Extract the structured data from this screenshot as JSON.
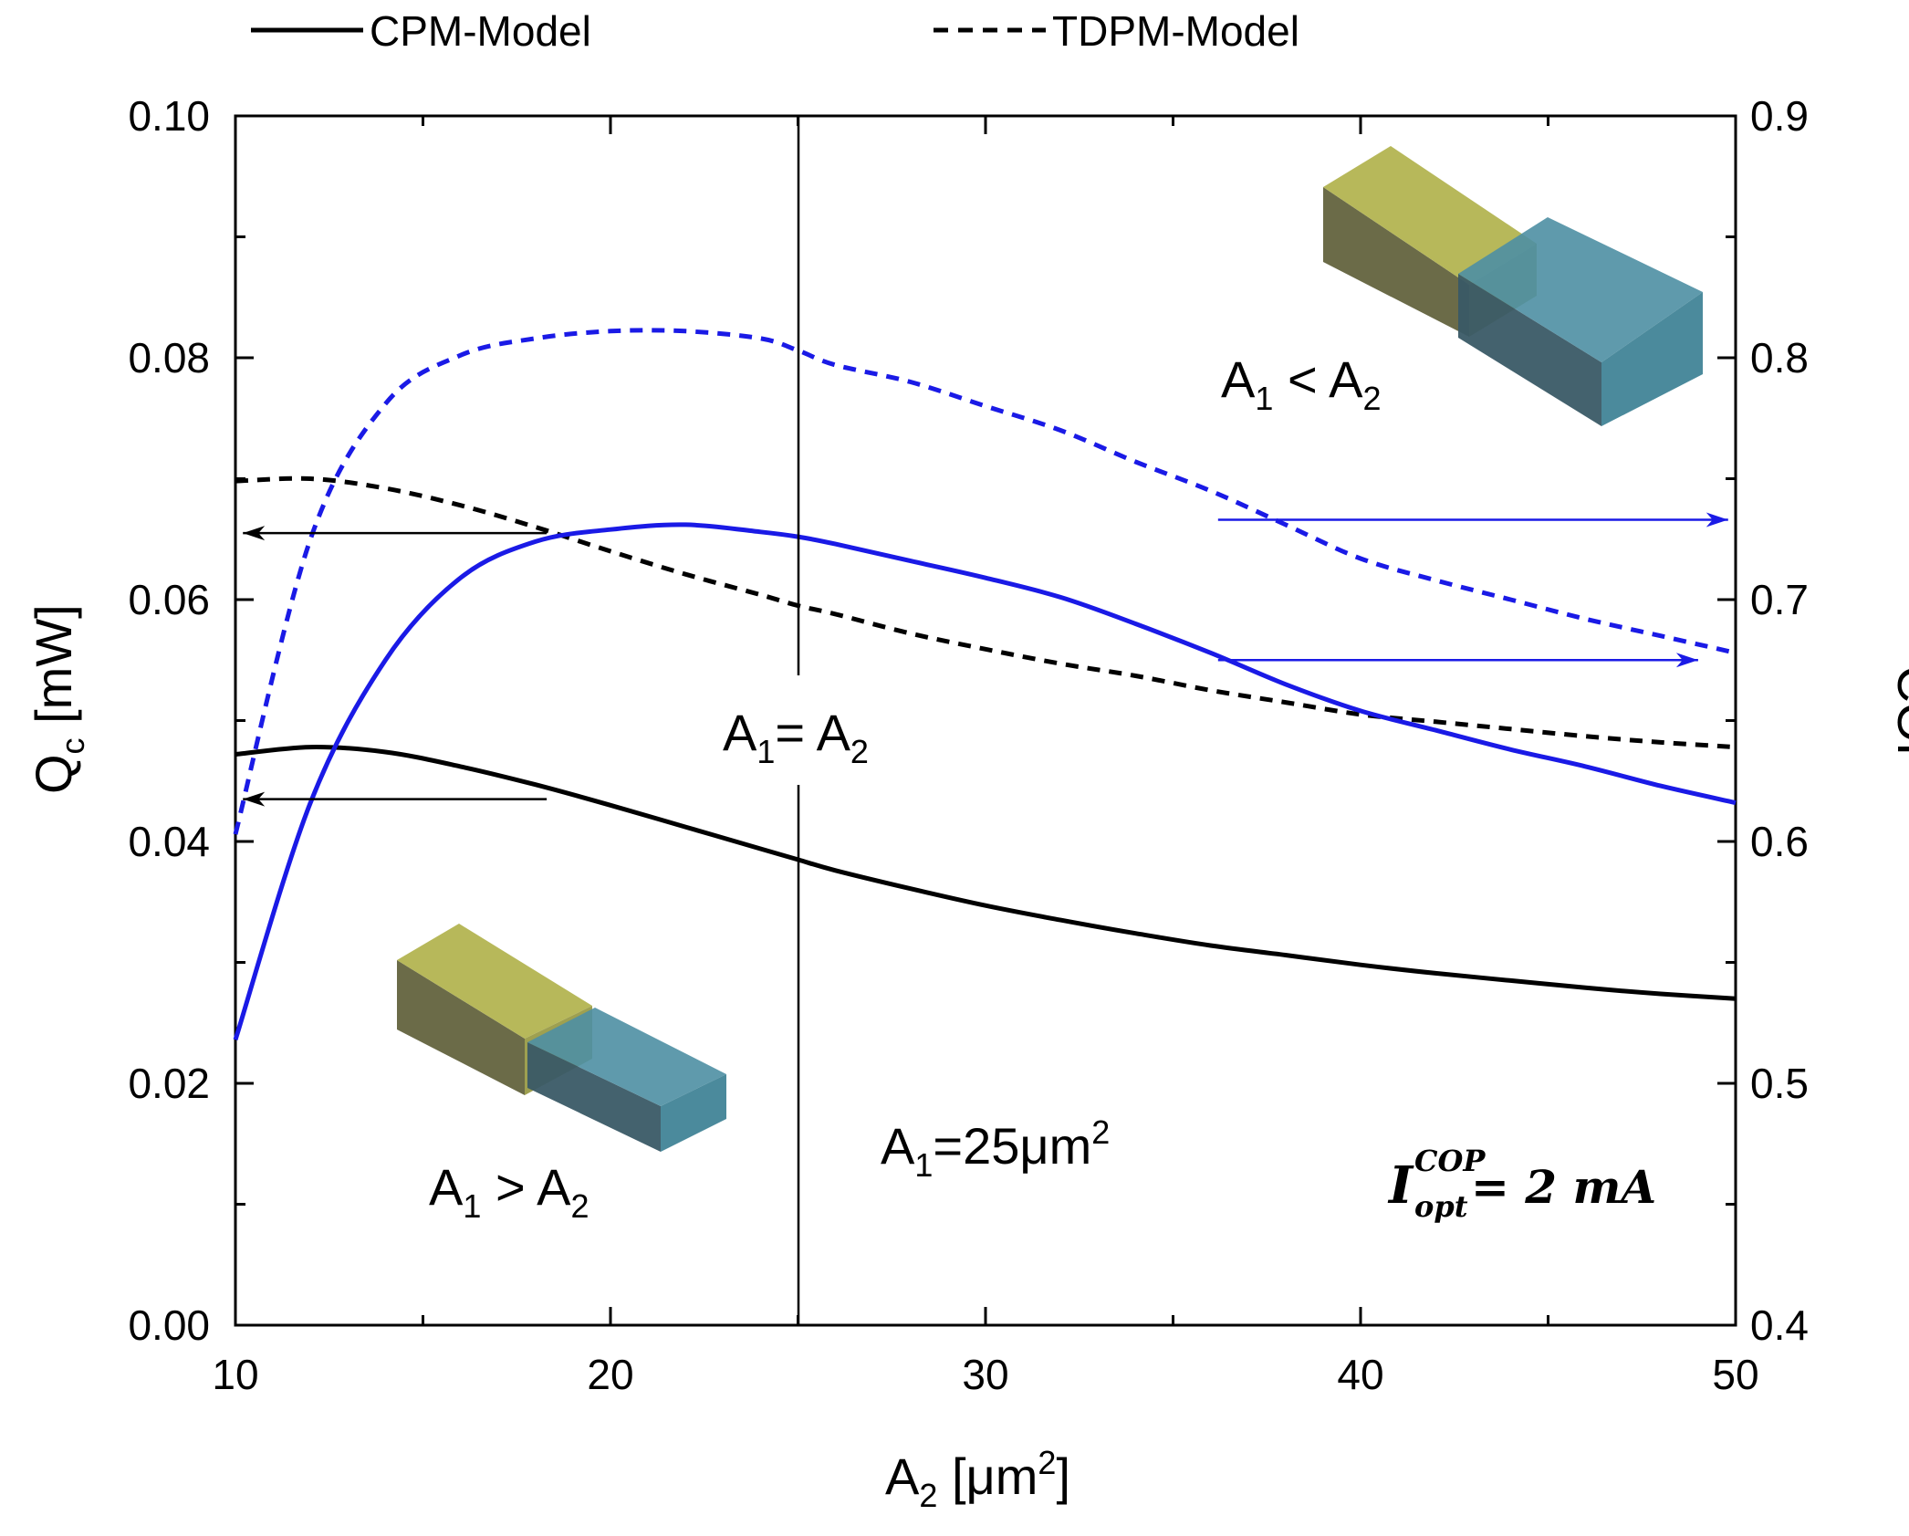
{
  "chart_data": {
    "type": "line",
    "title": "",
    "xlabel": "A₂ [μm²]",
    "ylabel_left": "Q_c [mW]",
    "ylabel_right": "COP",
    "x_ticks": [
      "10",
      "20",
      "30",
      "40",
      "50"
    ],
    "y_left_ticks": [
      "0.00",
      "0.02",
      "0.04",
      "0.06",
      "0.08",
      "0.10"
    ],
    "y_right_ticks": [
      "0.4",
      "0.5",
      "0.6",
      "0.7",
      "0.8",
      "0.9"
    ],
    "xlim": [
      10,
      50
    ],
    "ylim_left": [
      0,
      0.1
    ],
    "ylim_right": [
      0.4,
      0.9
    ],
    "legend": [
      {
        "label": "CPM-Model",
        "style": "solid"
      },
      {
        "label": "TDPM-Model",
        "style": "dashed"
      }
    ],
    "x": [
      10,
      12,
      14,
      16,
      18,
      20,
      22,
      24,
      25,
      26,
      28,
      30,
      32,
      34,
      36,
      38,
      40,
      42,
      44,
      46,
      48,
      50
    ],
    "series": [
      {
        "name": "CPM-Model Qc",
        "axis": "left",
        "style": "solid",
        "color": "#000000",
        "values": [
          0.0472,
          0.0478,
          0.0474,
          0.0462,
          0.0447,
          0.043,
          0.0412,
          0.0394,
          0.0385,
          0.0376,
          0.0361,
          0.0347,
          0.0335,
          0.0324,
          0.0314,
          0.0306,
          0.0298,
          0.0291,
          0.0285,
          0.0279,
          0.0274,
          0.027
        ]
      },
      {
        "name": "TDPM-Model Qc",
        "axis": "left",
        "style": "dashed",
        "color": "#000000",
        "values": [
          0.0698,
          0.07,
          0.0692,
          0.0678,
          0.066,
          0.064,
          0.0621,
          0.0604,
          0.0595,
          0.0588,
          0.0572,
          0.0559,
          0.0547,
          0.0537,
          0.0525,
          0.0515,
          0.0505,
          0.0499,
          0.0493,
          0.0487,
          0.0482,
          0.0478
        ]
      },
      {
        "name": "CPM-Model COP",
        "axis": "right",
        "style": "solid",
        "color": "#1a1ae6",
        "values": [
          0.518,
          0.616,
          0.675,
          0.709,
          0.724,
          0.729,
          0.731,
          0.728,
          0.726,
          0.723,
          0.716,
          0.709,
          0.701,
          0.69,
          0.678,
          0.665,
          0.654,
          0.646,
          0.638,
          0.631,
          0.623,
          0.616
        ]
      },
      {
        "name": "TDPM-Model COP",
        "axis": "right",
        "style": "dashed",
        "color": "#1a1ae6",
        "values": [
          0.603,
          0.725,
          0.781,
          0.801,
          0.808,
          0.811,
          0.811,
          0.808,
          0.803,
          0.797,
          0.79,
          0.78,
          0.77,
          0.757,
          0.745,
          0.731,
          0.717,
          0.708,
          0.7,
          0.692,
          0.685,
          0.678
        ]
      }
    ],
    "vertical_line_x": 25,
    "arrows": [
      {
        "from_x": 18.3,
        "to_x": 10.2,
        "y": 0.0655,
        "axis": "left",
        "color": "#000000"
      },
      {
        "from_x": 18.3,
        "to_x": 10.2,
        "y": 0.0435,
        "axis": "left",
        "color": "#000000"
      },
      {
        "from_x": 36.2,
        "to_x": 49.8,
        "y": 0.733,
        "axis": "right",
        "color": "#1a1ae6"
      },
      {
        "from_x": 36.2,
        "to_x": 49.0,
        "y": 0.675,
        "axis": "right",
        "color": "#1a1ae6"
      }
    ],
    "annotations": {
      "equal": {
        "a": "A",
        "s1": "1",
        "mid": "= A",
        "s2": "2"
      },
      "less": {
        "a": "A",
        "s1": "1",
        "mid": " < A",
        "s2": "2"
      },
      "greater": {
        "a": "A",
        "s1": "1",
        "mid": " > A",
        "s2": "2"
      },
      "a1value": {
        "a": "A",
        "s1": "1",
        "mid": "=25μm",
        "sup": "2"
      },
      "current": {
        "I": "I",
        "sup": "COP",
        "sub": "opt",
        "eq": " = 2 mA"
      }
    }
  },
  "colors": {
    "block_yellow": "#b7b85a",
    "block_yellow_dark": "#6b6b48",
    "block_blue": "#4e8fa3",
    "block_blue_dark": "#3a5a66",
    "series_blue": "#1a1ae6"
  }
}
